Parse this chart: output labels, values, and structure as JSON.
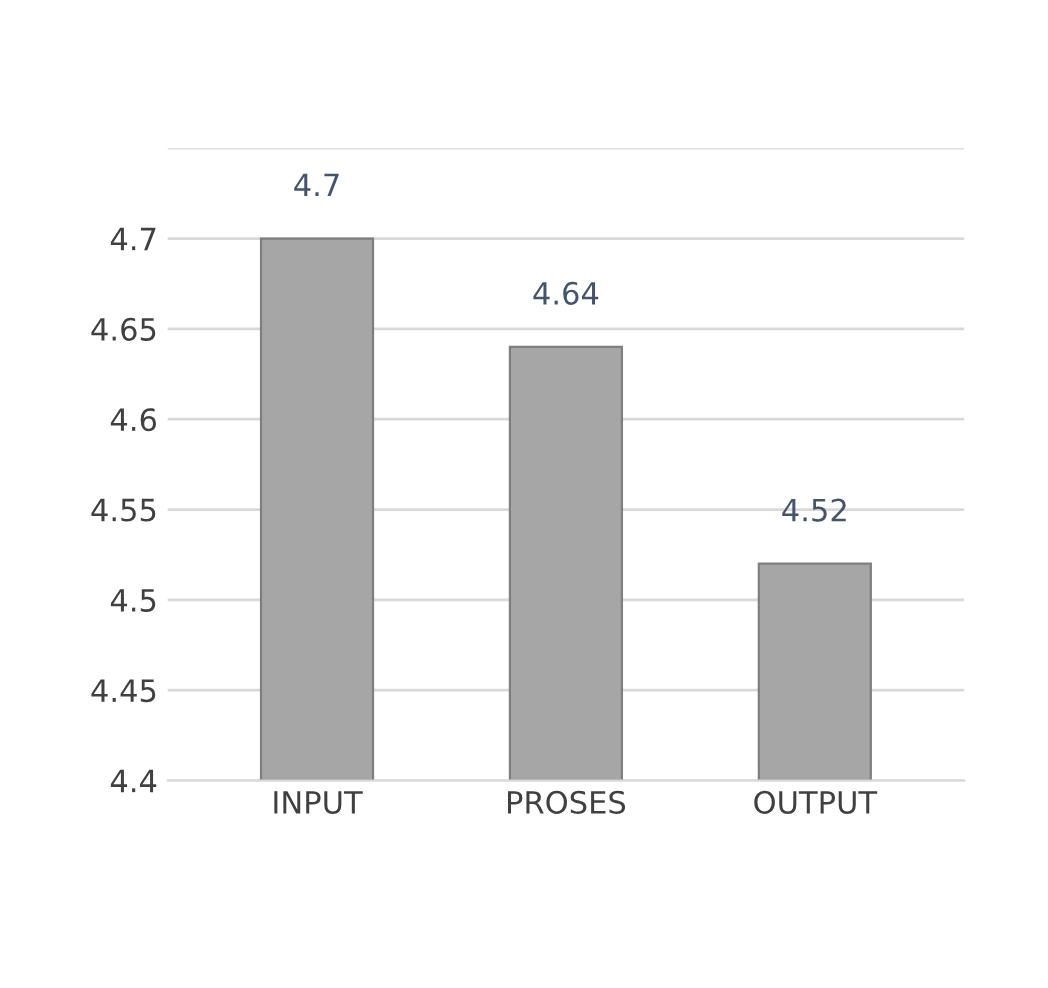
{
  "chart_data": {
    "type": "bar",
    "categories": [
      "INPUT",
      "PROSES",
      "OUTPUT"
    ],
    "values": [
      4.7,
      4.64,
      4.52
    ],
    "color": "#a6a6a6",
    "ylim": [
      4.4,
      4.75
    ],
    "yticks": [
      4.4,
      4.45,
      4.5,
      4.55,
      4.6,
      4.65,
      4.7,
      {
        "value": 4.75,
        "label": null
      }
    ],
    "grid": "y",
    "data_labels": true
  }
}
